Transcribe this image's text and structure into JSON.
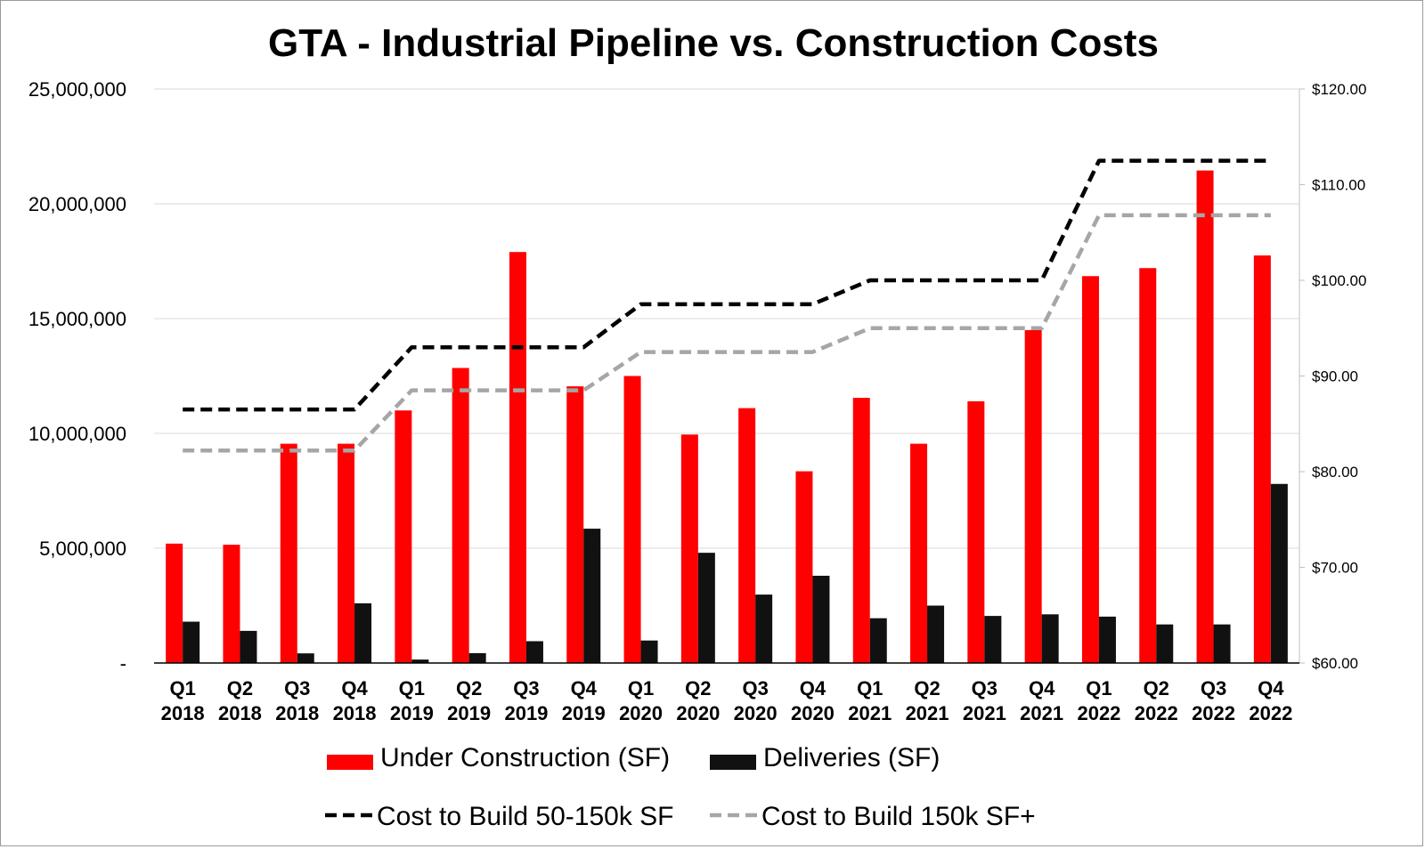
{
  "chart_data": {
    "type": "bar",
    "title": "GTA - Industrial Pipeline vs. Construction Costs",
    "categories": [
      [
        "Q1",
        "2018"
      ],
      [
        "Q2",
        "2018"
      ],
      [
        "Q3",
        "2018"
      ],
      [
        "Q4",
        "2018"
      ],
      [
        "Q1",
        "2019"
      ],
      [
        "Q2",
        "2019"
      ],
      [
        "Q3",
        "2019"
      ],
      [
        "Q4",
        "2019"
      ],
      [
        "Q1",
        "2020"
      ],
      [
        "Q2",
        "2020"
      ],
      [
        "Q3",
        "2020"
      ],
      [
        "Q4",
        "2020"
      ],
      [
        "Q1",
        "2021"
      ],
      [
        "Q2",
        "2021"
      ],
      [
        "Q3",
        "2021"
      ],
      [
        "Q4",
        "2021"
      ],
      [
        "Q1",
        "2022"
      ],
      [
        "Q2",
        "2022"
      ],
      [
        "Q3",
        "2022"
      ],
      [
        "Q4",
        "2022"
      ]
    ],
    "y_left": {
      "ylim": [
        0,
        25000000
      ],
      "ticks": [
        0,
        5000000,
        10000000,
        15000000,
        20000000,
        25000000
      ],
      "tick_labels": [
        "-",
        "5,000,000",
        "10,000,000",
        "15,000,000",
        "20,000,000",
        "25,000,000"
      ]
    },
    "y_right": {
      "ylim": [
        60,
        120
      ],
      "ticks": [
        60,
        70,
        80,
        90,
        100,
        110,
        120
      ],
      "tick_labels": [
        "$60.00",
        "$70.00",
        "$80.00",
        "$90.00",
        "$100.00",
        "$110.00",
        "$120.00"
      ]
    },
    "series": [
      {
        "name": "Under Construction (SF)",
        "kind": "bar",
        "axis": "left",
        "color": "#ff0000",
        "values": [
          5200000,
          5150000,
          9550000,
          9550000,
          11000000,
          12850000,
          17900000,
          12050000,
          12500000,
          9950000,
          11100000,
          8350000,
          11550000,
          9550000,
          11400000,
          14500000,
          16850000,
          17200000,
          21450000,
          17750000
        ]
      },
      {
        "name": "Deliveries (SF)",
        "kind": "bar",
        "axis": "left",
        "color": "#111111",
        "values": [
          1800000,
          1400000,
          420000,
          2600000,
          150000,
          430000,
          950000,
          5850000,
          980000,
          4800000,
          2980000,
          3800000,
          1950000,
          2500000,
          2050000,
          2120000,
          2020000,
          1680000,
          1680000,
          7800000
        ]
      },
      {
        "name": "Cost to Build 50-150k SF",
        "kind": "line",
        "axis": "right",
        "color": "#000000",
        "values": [
          86.5,
          86.5,
          86.5,
          86.5,
          93.0,
          93.0,
          93.0,
          93.0,
          97.5,
          97.5,
          97.5,
          97.5,
          100.0,
          100.0,
          100.0,
          100.0,
          112.5,
          112.5,
          112.5,
          112.5
        ]
      },
      {
        "name": "Cost to Build 150k SF+",
        "kind": "line",
        "axis": "right",
        "color": "#a6a6a6",
        "values": [
          82.2,
          82.2,
          82.2,
          82.2,
          88.5,
          88.5,
          88.5,
          88.5,
          92.5,
          92.5,
          92.5,
          92.5,
          95.0,
          95.0,
          95.0,
          95.0,
          106.8,
          106.8,
          106.8,
          106.8
        ]
      }
    ],
    "grid": true,
    "legend_position": "bottom"
  }
}
